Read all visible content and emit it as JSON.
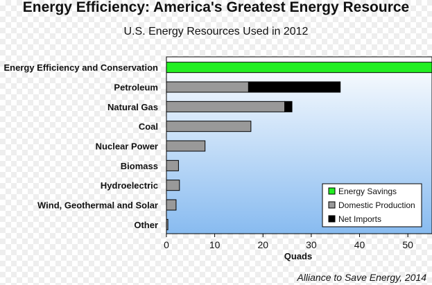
{
  "title": "Energy Efficiency: America's Greatest Energy Resource",
  "subtitle": "U.S. Energy Resources Used in 2012",
  "source": "Alliance to Save Energy, 2014",
  "colors": {
    "energy_savings": "#22ee22",
    "domestic_production": "#999999",
    "net_imports": "#000000",
    "plot_bg_top": "#ffffff",
    "plot_bg_bottom": "#88bbf0"
  },
  "chart_data": {
    "type": "bar",
    "orientation": "horizontal",
    "stacked": true,
    "title": "Energy Efficiency: America's Greatest Energy Resource",
    "subtitle": "U.S. Energy Resources Used in 2012",
    "xlabel": "Quads",
    "ylabel": "",
    "xlim": [
      0,
      55
    ],
    "xticks": [
      "0",
      "10",
      "20",
      "30",
      "40",
      "50"
    ],
    "xtick_values": [
      0,
      10,
      20,
      30,
      40,
      50
    ],
    "grid": false,
    "legend_position": "bottom-right",
    "categories": [
      "Energy Efficiency and Conservation",
      "Petroleum",
      "Natural Gas",
      "Coal",
      "Nuclear Power",
      "Biomass",
      "Hydroelectric",
      "Wind, Geothermal and Solar",
      "Other"
    ],
    "series": [
      {
        "name": "Energy Savings",
        "color": "#22ee22",
        "values": [
          55,
          0,
          0,
          0,
          0,
          0,
          0,
          0,
          0
        ]
      },
      {
        "name": "Domestic Production",
        "color": "#999999",
        "values": [
          0,
          17,
          24.5,
          17.5,
          8,
          2.5,
          2.7,
          2,
          0.3
        ]
      },
      {
        "name": "Net Imports",
        "color": "#000000",
        "values": [
          0,
          19,
          1.5,
          0,
          0,
          0,
          0,
          0,
          0
        ]
      }
    ]
  }
}
